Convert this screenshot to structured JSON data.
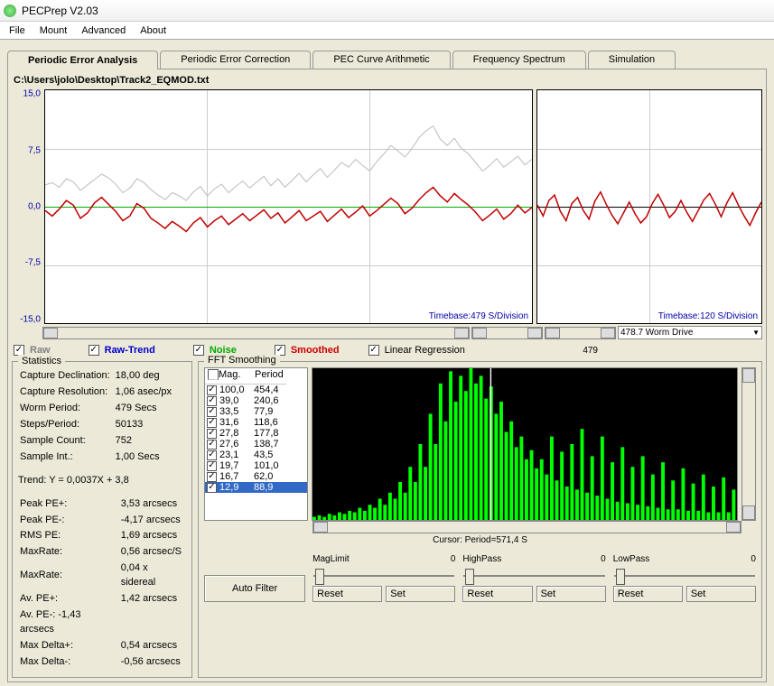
{
  "title": "PECPrep V2.03",
  "menu": [
    "File",
    "Mount",
    "Advanced",
    "About"
  ],
  "tabs": [
    "Periodic Error Analysis",
    "Periodic Error Correction",
    "PEC Curve Arithmetic",
    "Frequency Spectrum",
    "Simulation"
  ],
  "active_tab": 0,
  "filepath": "C:\\Users\\jolo\\Desktop\\Track2_EQMOD.txt",
  "main_chart": {
    "ylabels": [
      "15,0",
      "7,5",
      "0,0",
      "-7,5",
      "-15,0"
    ],
    "ylim": [
      -15,
      15
    ],
    "timebase": "Timebase:479 S/Division",
    "background": "#ffffff",
    "grid_color": "#cccccc",
    "zero_color": "#00a000",
    "raw_color": "#c00000",
    "trend_color": "#bbbbbb",
    "raw_points": [
      -0.5,
      -1.2,
      -0.3,
      0.8,
      0.2,
      -1.5,
      -0.8,
      0.5,
      1.2,
      0.3,
      -0.6,
      -1.8,
      -1.2,
      0.4,
      -0.2,
      -1.5,
      -2.1,
      -2.8,
      -1.9,
      -2.5,
      -3.2,
      -2.1,
      -1.4,
      -2.6,
      -1.8,
      -1.2,
      -2.3,
      -1.6,
      -0.9,
      -1.8,
      -1.1,
      -0.4,
      -1.5,
      -0.8,
      -2.1,
      -1.3,
      -0.5,
      -1.8,
      -1.2,
      -0.6,
      -1.9,
      -1.1,
      -0.3,
      -1.4,
      -0.7,
      0.1,
      -1.2,
      -0.5,
      0.3,
      1.1,
      0.4,
      -0.9,
      -0.2,
      0.9,
      1.8,
      2.5,
      1.4,
      0.6,
      1.7,
      0.9,
      0.2,
      -0.7,
      -1.8,
      -1.1,
      -0.3,
      -1.6,
      -0.9,
      0.2,
      -0.8,
      -0.1
    ],
    "trend_points": [
      2.8,
      3.1,
      2.5,
      3.6,
      3.2,
      2.1,
      2.8,
      3.5,
      4.2,
      3.7,
      2.9,
      1.8,
      2.4,
      3.6,
      3.1,
      2.2,
      1.5,
      0.9,
      1.8,
      1.4,
      0.8,
      1.9,
      2.6,
      1.4,
      2.3,
      2.9,
      1.8,
      2.6,
      3.3,
      2.4,
      3.2,
      3.9,
      2.7,
      3.6,
      2.5,
      3.4,
      4.3,
      3.2,
      4.1,
      4.9,
      3.8,
      4.7,
      5.7,
      5.1,
      6.1,
      5.3,
      4.6,
      5.8,
      6.8,
      7.9,
      7.2,
      6.4,
      7.5,
      8.9,
      9.8,
      10.4,
      8.7,
      7.9,
      8.8,
      7.5,
      6.8,
      5.7,
      4.6,
      5.3,
      6.2,
      5.1,
      5.8,
      6.5,
      5.4,
      6.1
    ]
  },
  "side_chart": {
    "timebase": "Timebase:120 S/Division",
    "raw_points": [
      0.2,
      -1.2,
      0.8,
      1.5,
      -0.6,
      -1.8,
      0.4,
      1.2,
      -0.5,
      -1.6,
      0.7,
      1.9,
      0.3,
      -1.1,
      -2.2,
      -0.8,
      0.6,
      -0.9,
      -2.1,
      -1.3,
      0.4,
      1.6,
      0.2,
      -1.4,
      -0.6,
      0.8,
      -0.7,
      -1.9,
      -0.5,
      0.9,
      1.7,
      0.3,
      -1.3,
      0.5,
      1.8,
      0.2,
      -1.2,
      -2.4,
      -0.8,
      0.6
    ]
  },
  "scroll_value": "479",
  "dropdown": "478.7 Worm Drive",
  "legend": [
    {
      "label": "Raw",
      "color": "#808080",
      "checked": true
    },
    {
      "label": "Raw-Trend",
      "color": "#0000cc",
      "checked": true
    },
    {
      "label": "Noise",
      "color": "#00aa00",
      "checked": true
    },
    {
      "label": "Smoothed",
      "color": "#cc0000",
      "checked": true
    },
    {
      "label": "Linear Regression",
      "color": "#000000",
      "checked": true
    }
  ],
  "statistics": {
    "title": "Statistics",
    "rows": [
      [
        "Capture Declination:",
        "18,00 deg"
      ],
      [
        "Capture Resolution:",
        "1,06 asec/px"
      ],
      [
        "Worm Period:",
        "479 Secs"
      ],
      [
        "Steps/Period:",
        "50133"
      ],
      [
        "Sample Count:",
        "752"
      ],
      [
        "Sample Int.:",
        "1,00 Secs"
      ]
    ],
    "trend": "Trend: Y = 0,0037X + 3,8",
    "rows2": [
      [
        "Peak PE+:",
        "3,53 arcsecs"
      ],
      [
        "Peak PE-:",
        "-4,17 arcsecs"
      ],
      [
        "RMS PE:",
        "1,69 arcsecs"
      ],
      [
        "MaxRate:",
        "0,56 arcsec/S"
      ],
      [
        "MaxRate:",
        "0,04 x sidereal"
      ],
      [
        "Av. PE+:",
        "1,42 arcsecs"
      ],
      [
        "Av. PE-:   -1,43 arcsecs",
        ""
      ],
      [
        "Max Delta+:",
        "0,54 arcsecs"
      ],
      [
        "Max Delta-:",
        "-0,56 arcsecs"
      ]
    ]
  },
  "fft": {
    "title": "FFT Smoothing",
    "columns": [
      "Mag.",
      "Period"
    ],
    "rows": [
      {
        "mag": "100,0",
        "period": "454,4",
        "checked": true
      },
      {
        "mag": "39,0",
        "period": "240,6",
        "checked": true
      },
      {
        "mag": "33,5",
        "period": "77,9",
        "checked": true
      },
      {
        "mag": "31,6",
        "period": "118,6",
        "checked": true
      },
      {
        "mag": "27,8",
        "period": "177,8",
        "checked": true
      },
      {
        "mag": "27,6",
        "period": "138,7",
        "checked": true
      },
      {
        "mag": "23,1",
        "period": "43,5",
        "checked": true
      },
      {
        "mag": "19,7",
        "period": "101,0",
        "checked": true
      },
      {
        "mag": "16,7",
        "period": "62,0",
        "checked": true
      },
      {
        "mag": "12,9",
        "period": "88,9",
        "checked": true,
        "selected": true
      }
    ],
    "cursor": "Cursor: Period=571,4 S",
    "bar_color": "#00ff00",
    "cursor_line_color": "#ffffff",
    "bars": [
      2,
      3,
      2,
      4,
      3,
      5,
      4,
      6,
      5,
      8,
      6,
      10,
      8,
      14,
      10,
      18,
      14,
      25,
      18,
      35,
      25,
      50,
      35,
      70,
      50,
      90,
      65,
      98,
      78,
      95,
      85,
      100,
      90,
      95,
      80,
      88,
      70,
      78,
      58,
      65,
      48,
      55,
      40,
      46,
      34,
      40,
      30,
      55,
      26,
      45,
      22,
      50,
      20,
      60,
      18,
      42,
      16,
      55,
      14,
      38,
      12,
      48,
      11,
      35,
      10,
      42,
      9,
      30,
      8,
      38,
      7,
      26,
      7,
      34,
      6,
      24,
      6,
      30,
      5,
      22,
      5,
      28,
      5,
      20
    ],
    "buttons": {
      "auto": "Auto Filter",
      "reset": "Reset",
      "set": "Set"
    },
    "sliders": [
      {
        "name": "MagLimit",
        "value": "0"
      },
      {
        "name": "HighPass",
        "value": "0"
      },
      {
        "name": "LowPass",
        "value": "0"
      }
    ]
  }
}
